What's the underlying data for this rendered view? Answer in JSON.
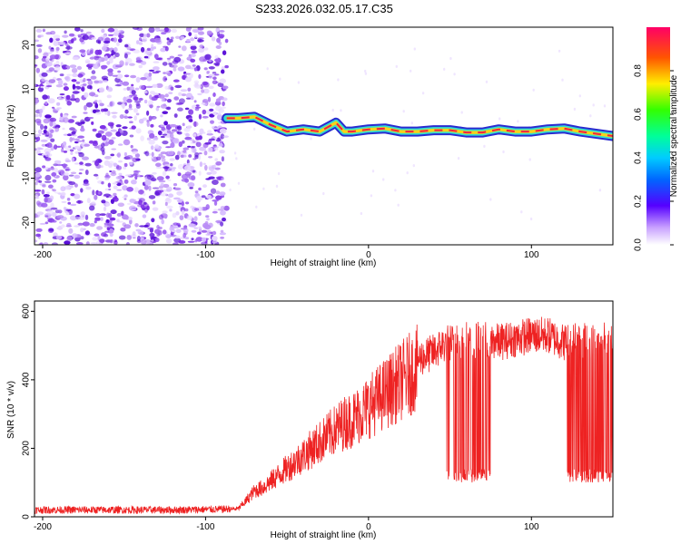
{
  "title": "S233.2026.032.05.17.C35",
  "colors": {
    "snr_line": "#ee2222",
    "noise_purple": "#7a2be6",
    "band_outer": "#2a2ad0",
    "band_inner": "#33ddd0",
    "band_core": "#ee2244",
    "band_center": "#f7d21a"
  },
  "chart_data": [
    {
      "type": "heatmap",
      "xlabel": "Height of straight line (km)",
      "ylabel": "Frequency (Hz)",
      "xlim": [
        -205,
        150
      ],
      "ylim": [
        -25,
        24
      ],
      "xticks": [
        -200,
        -100,
        0,
        100
      ],
      "xtick_labels": [
        "-200",
        "-100",
        "0",
        "100"
      ],
      "yticks": [
        -20,
        -10,
        0,
        10,
        20
      ],
      "ytick_labels": [
        "-20",
        "-10",
        "0",
        "10",
        "20"
      ],
      "colorbar": {
        "label": "Normalized spectral amplitude",
        "range": [
          0.0,
          1.0
        ],
        "ticks": [
          0.0,
          0.2,
          0.4,
          0.6,
          0.8
        ],
        "tick_labels": [
          "0.0",
          "0.2",
          "0.4",
          "0.6",
          "0.8"
        ]
      },
      "noise_region": {
        "x_range": [
          -205,
          -87
        ],
        "y_range": [
          -25,
          24
        ]
      },
      "signal_band": {
        "x": [
          -87,
          -80,
          -70,
          -60,
          -50,
          -40,
          -30,
          -20,
          -15,
          -10,
          0,
          10,
          20,
          30,
          40,
          50,
          60,
          70,
          80,
          90,
          100,
          110,
          120,
          130,
          140,
          150
        ],
        "freq": [
          3.5,
          3.5,
          3.8,
          2.0,
          0.5,
          1.0,
          0.5,
          2.5,
          0.5,
          0.5,
          1.0,
          1.2,
          0.5,
          0.5,
          0.8,
          0.8,
          0.3,
          0.3,
          1.0,
          0.5,
          0.5,
          1.0,
          1.2,
          0.5,
          0.0,
          -0.5
        ]
      }
    },
    {
      "type": "line",
      "xlabel": "Height of straight line (km)",
      "ylabel": "SNR (10 * v/v)",
      "xlim": [
        -205,
        150
      ],
      "ylim": [
        0,
        630
      ],
      "xticks": [
        -200,
        -100,
        0,
        100
      ],
      "xtick_labels": [
        "-200",
        "-100",
        "0",
        "100"
      ],
      "yticks": [
        0,
        200,
        400,
        600
      ],
      "ytick_labels": [
        "0",
        "200",
        "400",
        "600"
      ],
      "series": [
        {
          "name": "SNR",
          "x": [
            -205,
            -180,
            -150,
            -120,
            -90,
            -80,
            -75,
            -70,
            -65,
            -60,
            -55,
            -50,
            -45,
            -40,
            -35,
            -30,
            -25,
            -20,
            -15,
            -10,
            -5,
            0,
            5,
            10,
            15,
            20,
            25,
            30,
            35,
            40,
            45,
            50,
            55,
            60,
            65,
            70,
            80,
            90,
            100,
            110,
            120,
            130,
            140,
            150
          ],
          "values": [
            20,
            20,
            20,
            20,
            22,
            25,
            50,
            80,
            90,
            110,
            130,
            150,
            170,
            190,
            210,
            230,
            250,
            270,
            290,
            300,
            320,
            340,
            360,
            380,
            400,
            420,
            440,
            460,
            470,
            480,
            500,
            510,
            510,
            520,
            510,
            520,
            510,
            520,
            530,
            530,
            510,
            520,
            510,
            520
          ]
        }
      ],
      "dropouts": [
        [
          48,
          50
        ],
        [
          52,
          75
        ],
        [
          122,
          150
        ]
      ]
    }
  ]
}
